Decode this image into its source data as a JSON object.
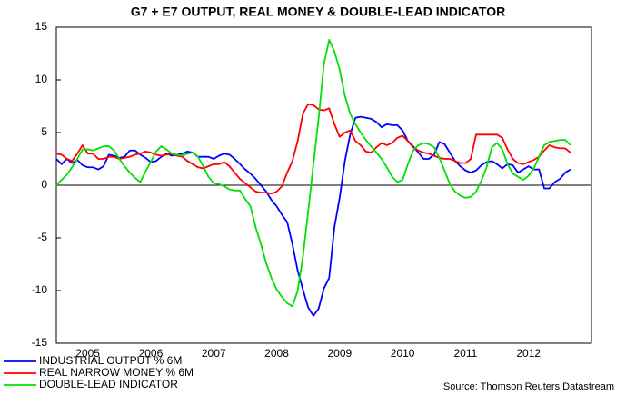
{
  "chart_data": {
    "type": "line",
    "title": "G7 + E7 OUTPUT, REAL MONEY & DOUBLE-LEAD INDICATOR",
    "source": "Source: Thomson Reuters Datastream",
    "categories": [
      null,
      null,
      null,
      null,
      null,
      null,
      "2005",
      null,
      null,
      null,
      null,
      null,
      null,
      null,
      null,
      null,
      null,
      null,
      "2006",
      null,
      null,
      null,
      null,
      null,
      null,
      null,
      null,
      null,
      null,
      null,
      "2007",
      null,
      null,
      null,
      null,
      null,
      null,
      null,
      null,
      null,
      null,
      null,
      "2008",
      null,
      null,
      null,
      null,
      null,
      null,
      null,
      null,
      null,
      null,
      null,
      "2009",
      null,
      null,
      null,
      null,
      null,
      null,
      null,
      null,
      null,
      null,
      null,
      "2010",
      null,
      null,
      null,
      null,
      null,
      null,
      null,
      null,
      null,
      null,
      null,
      "2011",
      null,
      null,
      null,
      null,
      null,
      null,
      null,
      null,
      null,
      null,
      null,
      "2012",
      null,
      null,
      null,
      null,
      null,
      null,
      null,
      null,
      null,
      null,
      null
    ],
    "ylim": [
      -15,
      15
    ],
    "yticks": [
      -15,
      -10,
      -5,
      0,
      5,
      10,
      15
    ],
    "zero_line": true,
    "series": [
      {
        "name": "INDUSTRIAL OUTPUT % 6M",
        "color": "#0000ff",
        "values": [
          2.5,
          2,
          2.5,
          2.1,
          2.4,
          1.9,
          1.7,
          1.7,
          1.5,
          1.8,
          2.9,
          2.8,
          2.6,
          2.7,
          3.3,
          3.3,
          2.9,
          2.6,
          2.2,
          2.3,
          2.7,
          3,
          2.8,
          2.9,
          3,
          3.2,
          3.1,
          2.7,
          2.7,
          2.7,
          2.5,
          2.8,
          3,
          2.9,
          2.5,
          2,
          1.5,
          1.1,
          0.6,
          0,
          -0.6,
          -1.4,
          -2,
          -2.8,
          -3.5,
          -5.6,
          -8.1,
          -9.9,
          -11.6,
          -12.4,
          -11.7,
          -9.8,
          -8.8,
          -4,
          -1.2,
          2.3,
          4.8,
          6.4,
          6.5,
          6.4,
          6.3,
          6,
          5.5,
          5.8,
          5.7,
          5.7,
          5.2,
          4.2,
          3.7,
          3.1,
          2.5,
          2.5,
          2.9,
          4.1,
          3.9,
          3.1,
          2.3,
          1.8,
          1.4,
          1.2,
          1.4,
          1.9,
          2.2,
          2.3,
          2,
          1.6,
          2,
          1.9,
          1.2,
          1.5,
          1.8,
          1.5,
          1.5,
          -0.3,
          -0.3,
          0.3,
          0.6,
          1.2,
          1.5,
          null,
          null,
          null
        ]
      },
      {
        "name": "REAL NARROW MONEY % 6M",
        "color": "#ff0000",
        "values": [
          3,
          2.9,
          2.5,
          2.3,
          3,
          3.8,
          3,
          3,
          2.5,
          2.5,
          2.7,
          2.7,
          2.5,
          2.6,
          2.7,
          2.9,
          3,
          3.2,
          3.1,
          2.9,
          2.8,
          2.9,
          3,
          2.8,
          2.7,
          2.3,
          2,
          1.7,
          1.6,
          1.8,
          2,
          2,
          2.2,
          1.8,
          1.2,
          0.6,
          0.2,
          -0.2,
          -0.6,
          -0.7,
          -0.7,
          -0.8,
          -0.6,
          -0.1,
          1.2,
          2.3,
          4.2,
          6.8,
          7.7,
          7.6,
          7.2,
          7.1,
          7.3,
          5.8,
          4.6,
          5,
          5.2,
          4.2,
          3.8,
          3.2,
          3.1,
          3.6,
          4,
          3.8,
          4,
          4.5,
          4.7,
          4.2,
          3.6,
          3.3,
          3.1,
          3,
          2.8,
          2.6,
          2.5,
          2.5,
          2.3,
          2.1,
          2.1,
          2.5,
          4.8,
          4.8,
          4.8,
          4.8,
          4.8,
          4.5,
          3.4,
          2.5,
          2.1,
          2,
          2.2,
          2.4,
          2.7,
          3.3,
          3.8,
          3.6,
          3.5,
          3.5,
          3.1,
          null,
          null,
          null
        ]
      },
      {
        "name": "DOUBLE-LEAD INDICATOR",
        "color": "#00e000",
        "values": [
          0,
          0.5,
          1,
          1.7,
          2.5,
          3.4,
          3.4,
          3.3,
          3.5,
          3.7,
          3.7,
          3.3,
          2.5,
          1.8,
          1.2,
          0.7,
          0.3,
          1.3,
          2.2,
          3.2,
          3.7,
          3.4,
          3,
          2.9,
          2.8,
          3,
          3.1,
          2.7,
          1.8,
          0.8,
          0.2,
          0.1,
          -0.1,
          -0.4,
          -0.5,
          -0.5,
          -1.3,
          -2,
          -4,
          -5.6,
          -7.4,
          -8.8,
          -9.9,
          -10.6,
          -11.2,
          -11.5,
          -10,
          -6.8,
          -2.5,
          2,
          6.4,
          11.5,
          13.8,
          12.7,
          11,
          8.5,
          6.8,
          5.8,
          5,
          4.3,
          3.7,
          3.1,
          2.5,
          1.7,
          0.8,
          0.3,
          0.5,
          2,
          3.3,
          3.8,
          4,
          3.9,
          3.6,
          2.6,
          1.4,
          0.1,
          -0.6,
          -1,
          -1.2,
          -1.1,
          -0.6,
          0.4,
          1.7,
          3.6,
          4,
          3.4,
          2,
          1.1,
          0.8,
          0.5,
          0.9,
          1.6,
          2.7,
          3.8,
          4.1,
          4.2,
          4.3,
          4.3,
          3.8,
          null,
          null,
          null
        ]
      }
    ]
  }
}
